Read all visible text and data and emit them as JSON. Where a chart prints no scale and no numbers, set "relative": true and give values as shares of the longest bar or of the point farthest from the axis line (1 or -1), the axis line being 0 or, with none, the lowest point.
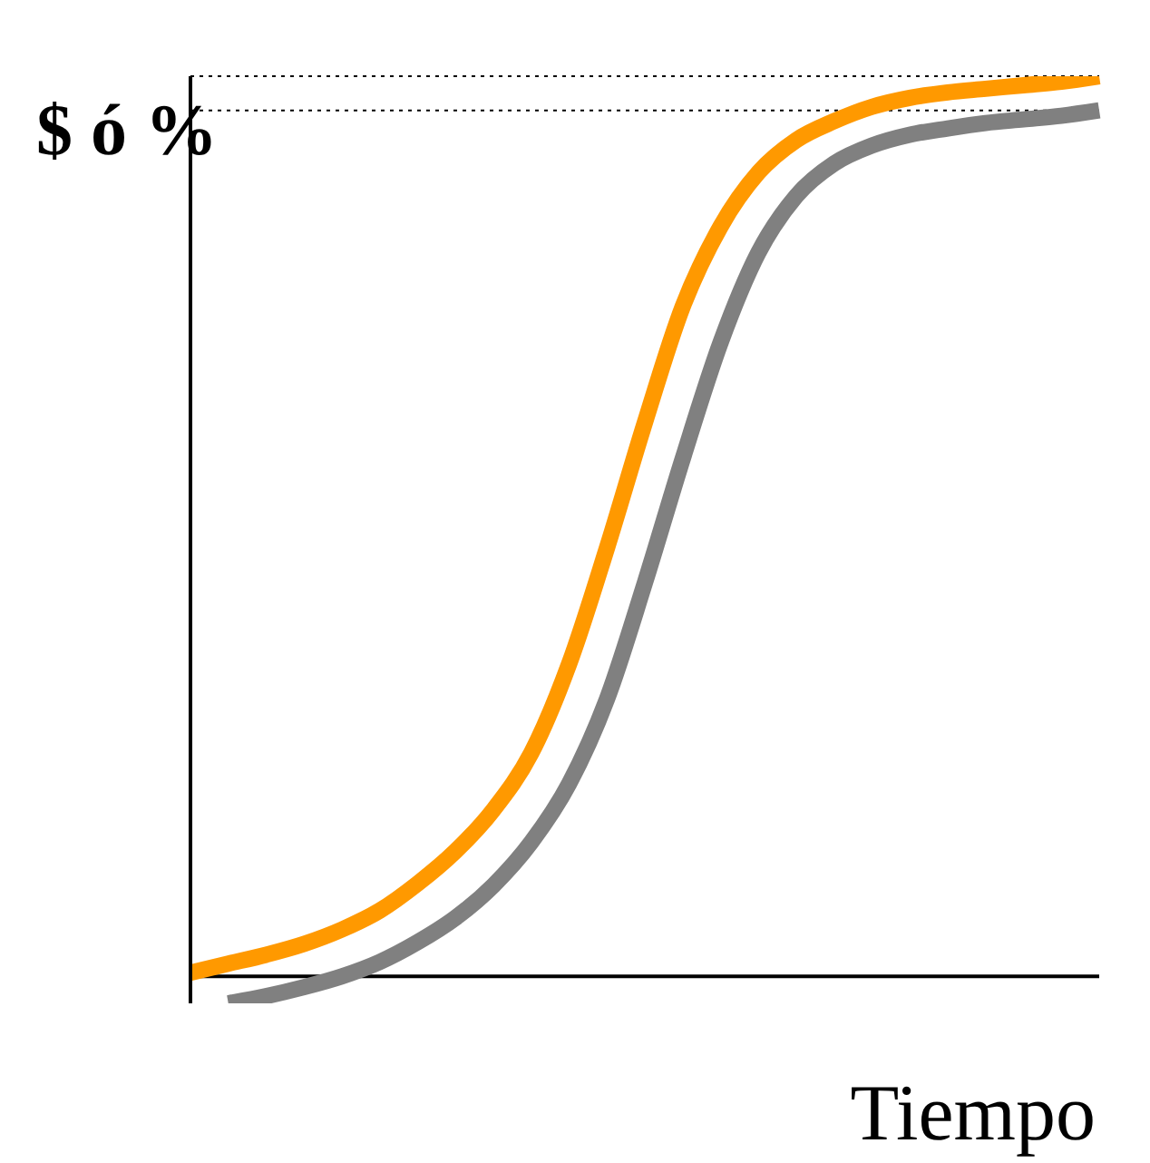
{
  "chart_data": {
    "type": "line",
    "relative": true,
    "xlabel": "Tiempo",
    "ylabel": "$ ó %",
    "categories": [
      null,
      null,
      null,
      null,
      null,
      null,
      null,
      null,
      null,
      null,
      null,
      null,
      null,
      null,
      null,
      null,
      null,
      null,
      null,
      null,
      null,
      null,
      null,
      null,
      null
    ],
    "series": [
      {
        "color": "#ff9900",
        "values": [
          0.004,
          0.014,
          0.024,
          0.036,
          0.052,
          0.073,
          0.103,
          0.139,
          0.185,
          0.248,
          0.347,
          0.476,
          0.615,
          0.744,
          0.833,
          0.893,
          0.929,
          0.95,
          0.966,
          0.976,
          0.982,
          0.986,
          0.99,
          0.994,
          1
        ]
      },
      {
        "color": "#808080",
        "values": [
          null,
          -0.03,
          -0.022,
          -0.012,
          0,
          0.016,
          0.038,
          0.065,
          0.101,
          0.149,
          0.214,
          0.308,
          0.437,
          0.575,
          0.704,
          0.804,
          0.867,
          0.903,
          0.923,
          0.935,
          0.942,
          0.948,
          0.952,
          0.956,
          0.962
        ]
      }
    ],
    "ref_lines": [
      {
        "axis": "y",
        "value": 1,
        "line_style": "dotted",
        "color": "#000000"
      },
      {
        "axis": "y",
        "value": 0.962,
        "line_style": "dotted",
        "color": "#000000"
      }
    ]
  }
}
